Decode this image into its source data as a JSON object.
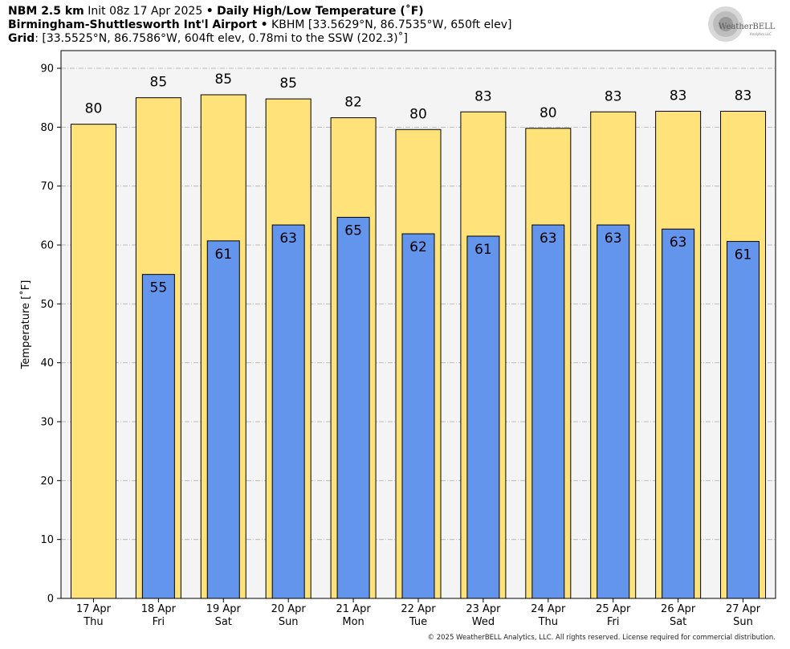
{
  "header": {
    "line1": {
      "model": "NBM 2.5 km",
      "init": "Init 08z 17 Apr 2025",
      "sep": "•",
      "product": "Daily High/Low Temperature (˚F)"
    },
    "line2": {
      "station_name": "Birmingham-Shuttlesworth Int'l Airport",
      "sep": "•",
      "station_info": "KBHM [33.5629°N, 86.7535°W, 650ft elev]"
    },
    "line3": {
      "label": "Grid",
      "info": ": [33.5525°N, 86.7586°W, 604ft elev, 0.78mi to the SSW (202.3)˚]"
    }
  },
  "logo": {
    "text_main": "WeatherBELL",
    "text_sub": "Analytics LLC"
  },
  "copyright": "© 2025 WeatherBELL Analytics, LLC. All rights reserved. License required for commercial distribution.",
  "colors": {
    "high_bar": "#FFE37A",
    "low_bar": "#6495ED",
    "plot_bg": "#F4F4F4",
    "grid": "#BBBBBB"
  },
  "chart_data": {
    "type": "bar",
    "ylabel": "Temperature [˚F]",
    "xlabel": "",
    "ylim": [
      0,
      93
    ],
    "yticks": [
      0,
      10,
      20,
      30,
      40,
      50,
      60,
      70,
      80,
      90
    ],
    "grid": true,
    "categories": [
      {
        "date": "17 Apr",
        "dow": "Thu"
      },
      {
        "date": "18 Apr",
        "dow": "Fri"
      },
      {
        "date": "19 Apr",
        "dow": "Sat"
      },
      {
        "date": "20 Apr",
        "dow": "Sun"
      },
      {
        "date": "21 Apr",
        "dow": "Mon"
      },
      {
        "date": "22 Apr",
        "dow": "Tue"
      },
      {
        "date": "23 Apr",
        "dow": "Wed"
      },
      {
        "date": "24 Apr",
        "dow": "Thu"
      },
      {
        "date": "25 Apr",
        "dow": "Fri"
      },
      {
        "date": "26 Apr",
        "dow": "Sat"
      },
      {
        "date": "27 Apr",
        "dow": "Sun"
      }
    ],
    "series": [
      {
        "values": [
          80.5,
          85.0,
          85.5,
          84.8,
          81.6,
          79.6,
          82.6,
          79.8,
          82.6,
          82.7,
          82.7
        ],
        "labels": [
          "80",
          "85",
          "85",
          "85",
          "82",
          "80",
          "83",
          "80",
          "83",
          "83",
          "83"
        ]
      },
      {
        "values": [
          null,
          55.0,
          60.7,
          63.4,
          64.7,
          61.9,
          61.5,
          63.4,
          63.4,
          62.7,
          60.6
        ],
        "labels": [
          null,
          "55",
          "61",
          "63",
          "65",
          "62",
          "61",
          "63",
          "63",
          "63",
          "61"
        ]
      }
    ]
  }
}
